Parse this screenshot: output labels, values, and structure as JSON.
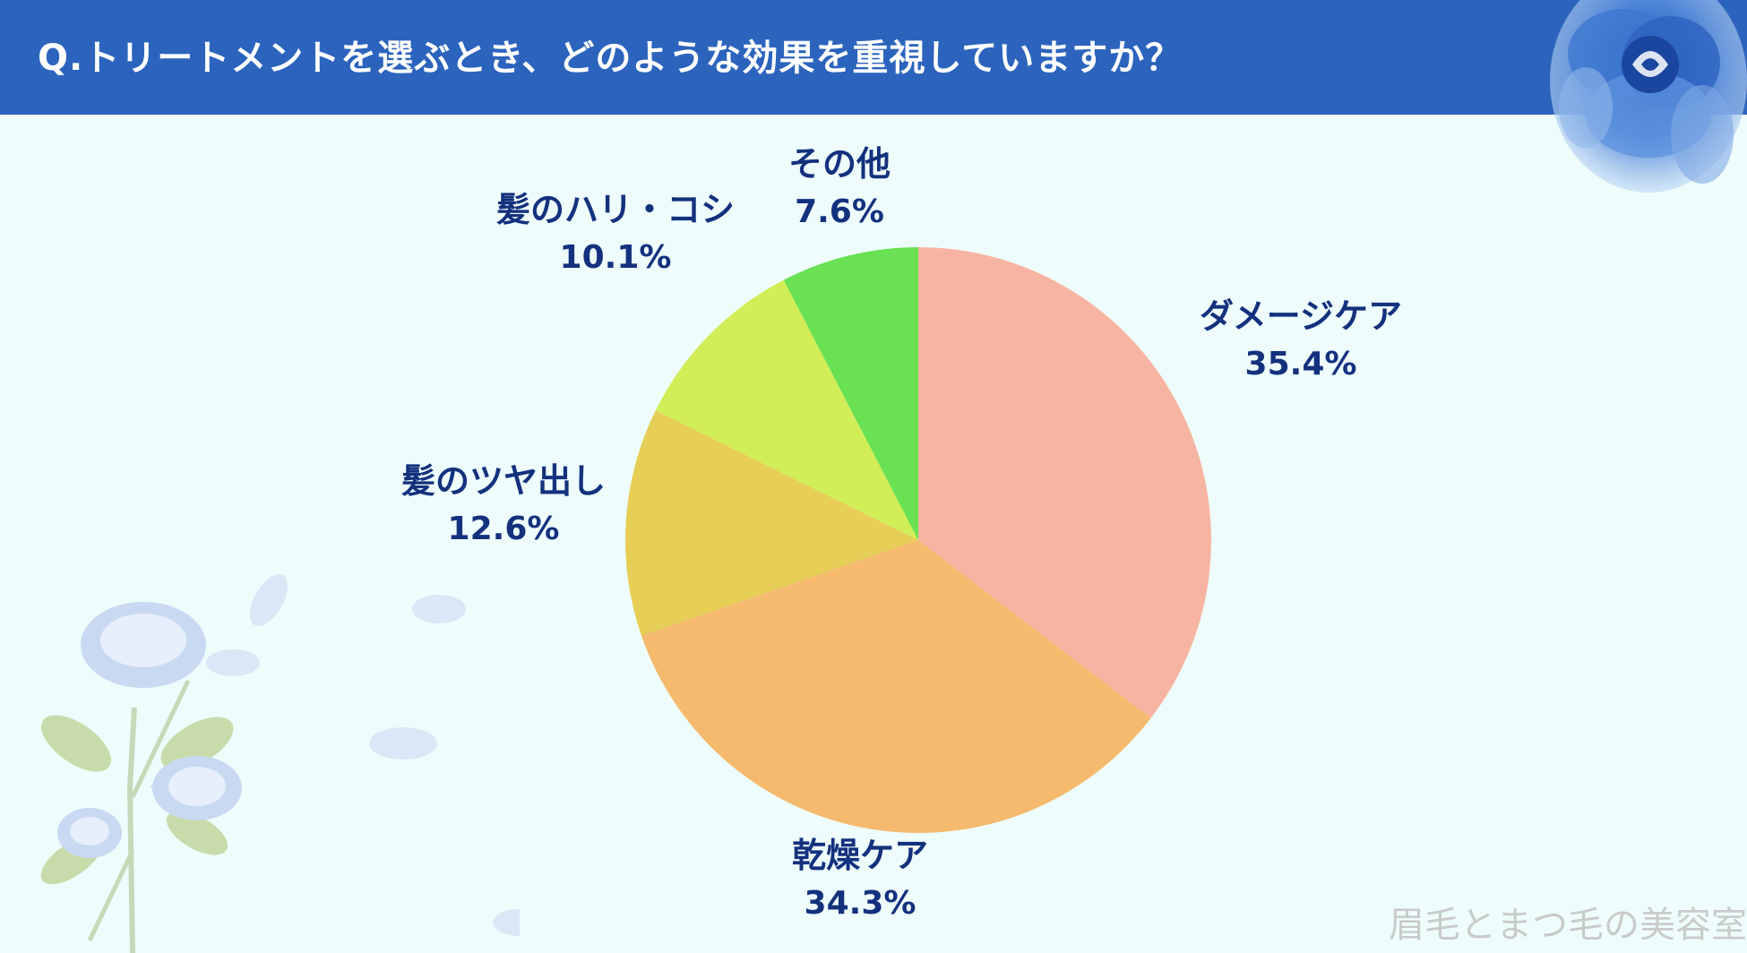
{
  "title": "Q.トリートメントを選ぶとき、どのような効果を重視していますか？",
  "watermark": "眉毛とまつ毛の美容室",
  "colors": {
    "header": "#2c64bd",
    "background": "#eefdfc",
    "label": "#14317e"
  },
  "chart_data": {
    "type": "pie",
    "title": "Q.トリートメントを選ぶとき、どのような効果を重視していますか？",
    "start": "12 o'clock",
    "direction": "clockwise",
    "slices": [
      {
        "label": "ダメージケア",
        "value": 35.4,
        "value_label": "35.4%",
        "color": "#f8b4a2"
      },
      {
        "label": "乾燥ケア",
        "value": 34.3,
        "value_label": "34.3%",
        "color": "#f5ba6e"
      },
      {
        "label": "髪のツヤ出し",
        "value": 12.6,
        "value_label": "12.6%",
        "color": "#e6ce57"
      },
      {
        "label": "髪のハリ・コシ",
        "value": 10.1,
        "value_label": "10.1%",
        "color": "#d1ed57"
      },
      {
        "label": "その他",
        "value": 7.6,
        "value_label": "7.6%",
        "color": "#69e152"
      }
    ]
  }
}
